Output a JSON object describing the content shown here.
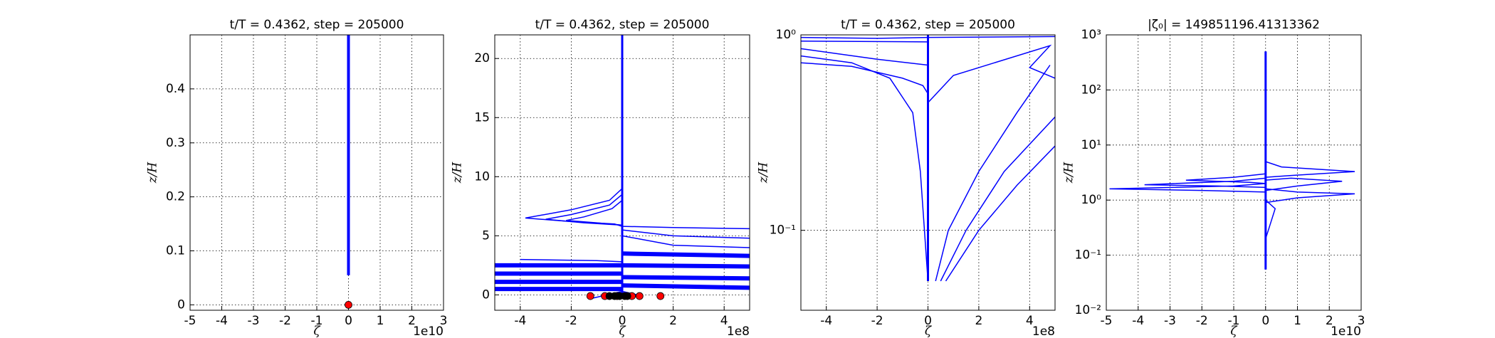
{
  "chart_data": [
    {
      "type": "line",
      "title": "t/T = 0.4362, step = 205000",
      "xlabel": "ζ",
      "ylabel": "z/H",
      "x_offset_label": "1e10",
      "xlim": [
        -5,
        3
      ],
      "ylim": [
        -0.01,
        0.5
      ],
      "xticks": [
        -5,
        -4,
        -3,
        -2,
        -1,
        0,
        1,
        2,
        3
      ],
      "yticks": [
        0.0,
        0.1,
        0.2,
        0.3,
        0.4
      ],
      "grid": true,
      "log_y": false,
      "series": [
        {
          "color": "#0000ff",
          "linewidth": 4,
          "x": [
            0,
            0
          ],
          "values": [
            0.055,
            0.5
          ]
        }
      ],
      "points": [
        {
          "color": "#ff0000",
          "x": [
            0
          ],
          "values": [
            0
          ]
        }
      ]
    },
    {
      "type": "line",
      "title": "t/T = 0.4362, step = 205000",
      "xlabel": "ζ",
      "ylabel": "z/H",
      "x_offset_label": "1e8",
      "xlim": [
        -5,
        5
      ],
      "ylim": [
        -1.3,
        22
      ],
      "xticks": [
        -4,
        -2,
        0,
        2,
        4
      ],
      "yticks": [
        0,
        5,
        10,
        15,
        20
      ],
      "grid": true,
      "log_y": false,
      "series": [
        {
          "color": "#0000ff",
          "linewidth": 3,
          "x": [
            0,
            0
          ],
          "values": [
            0,
            22
          ]
        },
        {
          "color": "#0000ff",
          "linewidth": 1.5,
          "x": [
            0,
            -0.5,
            -2,
            -3.8,
            -2,
            -0.3,
            0
          ],
          "values": [
            9,
            8,
            7.2,
            6.5,
            6.2,
            6,
            5.8
          ]
        },
        {
          "color": "#0000ff",
          "linewidth": 1.5,
          "x": [
            0,
            -0.5,
            -2,
            -3,
            -1.5,
            0
          ],
          "values": [
            8.5,
            7.6,
            6.8,
            6.4,
            6.1,
            5.9
          ]
        },
        {
          "color": "#0000ff",
          "linewidth": 1.5,
          "x": [
            0,
            -0.4,
            -1.5,
            -2.2,
            -1,
            0
          ],
          "values": [
            8,
            7.3,
            6.6,
            6.3,
            6.1,
            5.9
          ]
        },
        {
          "color": "#0000ff",
          "linewidth": 1.5,
          "x": [
            0,
            2,
            5
          ],
          "values": [
            5.8,
            5.7,
            5.6
          ]
        },
        {
          "color": "#0000ff",
          "linewidth": 1.5,
          "x": [
            0,
            2,
            5
          ],
          "values": [
            5.5,
            5,
            4.8
          ]
        },
        {
          "color": "#0000ff",
          "linewidth": 1.5,
          "x": [
            0,
            2,
            5
          ],
          "values": [
            5,
            4.2,
            4
          ]
        },
        {
          "color": "#0000ff",
          "linewidth": 6,
          "x": [
            0,
            5
          ],
          "values": [
            3.5,
            3.3
          ]
        },
        {
          "color": "#0000ff",
          "linewidth": 6,
          "x": [
            0,
            5
          ],
          "values": [
            2.5,
            2.4
          ]
        },
        {
          "color": "#0000ff",
          "linewidth": 6,
          "x": [
            0,
            5
          ],
          "values": [
            1.5,
            1.4
          ]
        },
        {
          "color": "#0000ff",
          "linewidth": 6,
          "x": [
            0,
            5
          ],
          "values": [
            0.8,
            0.6
          ]
        },
        {
          "color": "#0000ff",
          "linewidth": 6,
          "x": [
            -5,
            0
          ],
          "values": [
            2.5,
            2.5
          ]
        },
        {
          "color": "#0000ff",
          "linewidth": 6,
          "x": [
            -5,
            0
          ],
          "values": [
            1.8,
            1.8
          ]
        },
        {
          "color": "#0000ff",
          "linewidth": 6,
          "x": [
            -5,
            0
          ],
          "values": [
            1.1,
            1.1
          ]
        },
        {
          "color": "#0000ff",
          "linewidth": 6,
          "x": [
            -5,
            0
          ],
          "values": [
            0.5,
            0.5
          ]
        },
        {
          "color": "#0000ff",
          "linewidth": 1.5,
          "x": [
            -4,
            -1,
            0
          ],
          "values": [
            3,
            2.9,
            2.8
          ]
        },
        {
          "color": "#0000ff",
          "linewidth": 1.5,
          "x": [
            -1.2,
            -0.6,
            0,
            0.6
          ],
          "values": [
            -0.3,
            0,
            0.3,
            0
          ]
        }
      ],
      "points": [
        {
          "color": "#ff0000",
          "x": [
            -1.25,
            -0.68,
            -0.2,
            0.38,
            0.68,
            1.5
          ],
          "values": [
            -0.1,
            -0.1,
            -0.1,
            -0.1,
            -0.1,
            -0.1
          ]
        },
        {
          "color": "#000000",
          "x": [
            -0.5,
            -0.3,
            -0.1,
            0.1,
            0.2
          ],
          "values": [
            -0.1,
            -0.1,
            -0.1,
            -0.1,
            -0.1
          ]
        }
      ]
    },
    {
      "type": "line",
      "title": "t/T = 0.4362, step = 205000",
      "xlabel": "ζ",
      "ylabel": "z/H",
      "x_offset_label": "1e8",
      "xlim": [
        -5,
        5
      ],
      "ylim": [
        0.039,
        1
      ],
      "xticks": [
        -4,
        -2,
        0,
        2,
        4
      ],
      "yticks": [
        {
          "value": 0.1,
          "label": "10⁻¹"
        },
        {
          "value": 1,
          "label": "10⁰"
        }
      ],
      "grid": true,
      "log_y": true,
      "series": [
        {
          "color": "#0000ff",
          "linewidth": 3,
          "x": [
            0,
            0
          ],
          "values": [
            0.055,
            1
          ]
        },
        {
          "color": "#0000ff",
          "linewidth": 1.5,
          "x": [
            -5,
            -3,
            -1,
            -0.2,
            0
          ],
          "values": [
            0.72,
            0.69,
            0.6,
            0.55,
            0.5
          ]
        },
        {
          "color": "#0000ff",
          "linewidth": 1.5,
          "x": [
            -5,
            -2,
            0
          ],
          "values": [
            0.85,
            0.75,
            0.7
          ]
        },
        {
          "color": "#0000ff",
          "linewidth": 1.5,
          "x": [
            -5,
            0
          ],
          "values": [
            0.93,
            0.92
          ]
        },
        {
          "color": "#0000ff",
          "linewidth": 1.5,
          "x": [
            0.3,
            0.8,
            2,
            3.5,
            4.8
          ],
          "values": [
            0.055,
            0.1,
            0.2,
            0.4,
            0.7
          ]
        },
        {
          "color": "#0000ff",
          "linewidth": 1.5,
          "x": [
            0.5,
            1.5,
            3,
            5
          ],
          "values": [
            0.055,
            0.1,
            0.2,
            0.38
          ]
        },
        {
          "color": "#0000ff",
          "linewidth": 1.5,
          "x": [
            0.7,
            2,
            3.5,
            5
          ],
          "values": [
            0.055,
            0.1,
            0.17,
            0.27
          ]
        },
        {
          "color": "#0000ff",
          "linewidth": 1.5,
          "x": [
            0,
            1,
            4.8,
            4,
            5
          ],
          "values": [
            0.45,
            0.62,
            0.88,
            0.68,
            0.6
          ]
        },
        {
          "color": "#0000ff",
          "linewidth": 1.5,
          "x": [
            0,
            -0.3,
            -0.6,
            -1.5,
            -3,
            -5
          ],
          "values": [
            0.055,
            0.2,
            0.4,
            0.6,
            0.72,
            0.78
          ]
        },
        {
          "color": "#0000ff",
          "linewidth": 1.5,
          "x": [
            -5,
            -2,
            0,
            5
          ],
          "values": [
            0.97,
            0.96,
            0.97,
            0.98
          ]
        }
      ]
    },
    {
      "type": "line",
      "title": "|ζ₀| = 149851196.41313362",
      "xlabel": "ζ",
      "ylabel": "z/H",
      "x_offset_label": "1e10",
      "xlim": [
        -5,
        3
      ],
      "ylim": [
        0.01,
        1000
      ],
      "xticks": [
        -5,
        -4,
        -3,
        -2,
        -1,
        0,
        1,
        2,
        3
      ],
      "yticks": [
        {
          "value": 0.01,
          "label": "10⁻²"
        },
        {
          "value": 0.1,
          "label": "10⁻¹"
        },
        {
          "value": 1,
          "label": "10⁰"
        },
        {
          "value": 10,
          "label": "10¹"
        },
        {
          "value": 100,
          "label": "10²"
        },
        {
          "value": 1000,
          "label": "10³"
        }
      ],
      "grid": true,
      "log_y": true,
      "series": [
        {
          "color": "#0000ff",
          "linewidth": 3,
          "x": [
            0,
            0
          ],
          "values": [
            0.055,
            500
          ]
        },
        {
          "color": "#0000ff",
          "linewidth": 1.5,
          "x": [
            0,
            -1,
            -4.9,
            -2,
            0
          ],
          "values": [
            2,
            1.8,
            1.6,
            1.5,
            1.4
          ]
        },
        {
          "color": "#0000ff",
          "linewidth": 1.5,
          "x": [
            0,
            -1,
            -3.8,
            -1.5,
            0
          ],
          "values": [
            2.5,
            2.2,
            1.9,
            1.8,
            1.7
          ]
        },
        {
          "color": "#0000ff",
          "linewidth": 1.5,
          "x": [
            0,
            -1,
            -2.5,
            -0.5,
            0
          ],
          "values": [
            3,
            2.6,
            2.3,
            2.1,
            2
          ]
        },
        {
          "color": "#0000ff",
          "linewidth": 1.5,
          "x": [
            0,
            1,
            2.8,
            1,
            0
          ],
          "values": [
            1.6,
            1.4,
            1.3,
            1.1,
            0.9
          ]
        },
        {
          "color": "#0000ff",
          "linewidth": 1.5,
          "x": [
            0,
            0.8,
            2.4,
            1,
            0
          ],
          "values": [
            2.3,
            2.5,
            2.2,
            1.8,
            1.5
          ]
        },
        {
          "color": "#0000ff",
          "linewidth": 1.5,
          "x": [
            0,
            0.5,
            2.8,
            0.8,
            0
          ],
          "values": [
            5,
            4,
            3.3,
            2.8,
            2.6
          ]
        },
        {
          "color": "#0000ff",
          "linewidth": 1.5,
          "x": [
            0,
            0.3,
            0.1,
            0
          ],
          "values": [
            1,
            0.7,
            0.3,
            0.2
          ]
        }
      ]
    }
  ]
}
